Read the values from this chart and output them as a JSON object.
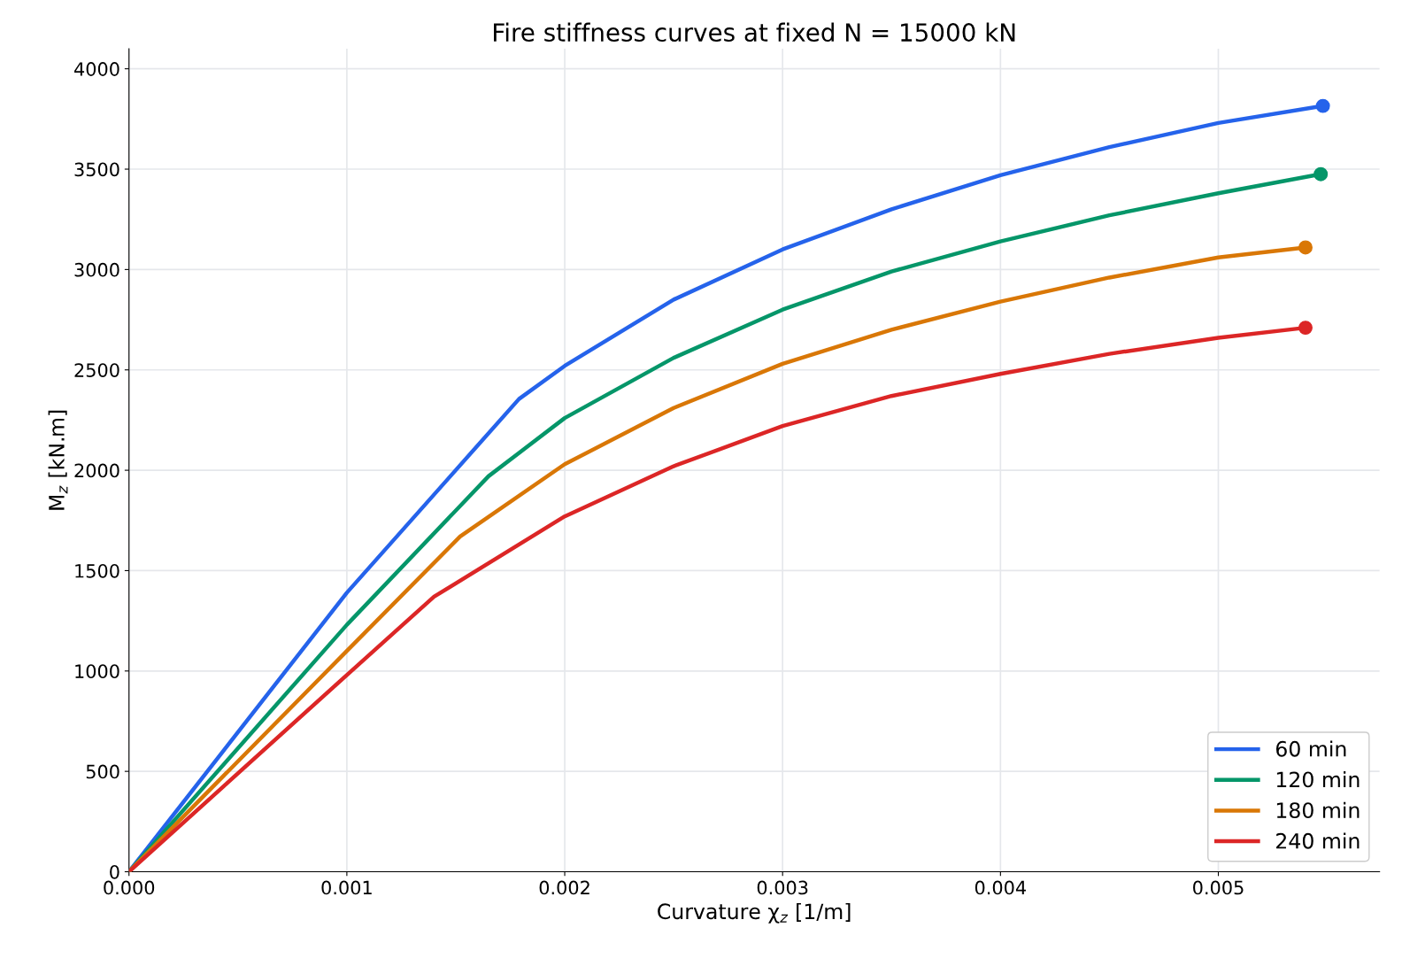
{
  "chart_data": {
    "type": "line",
    "title": "Fire stiffness curves at fixed N = 15000 kN",
    "xlabel": "Curvature χ$_{z}$ [1/m]",
    "ylabel": "M$_{z}$ [kN.m]",
    "xlim": [
      0,
      0.00574
    ],
    "xticks": [
      {
        "value": 0,
        "label": "0.000"
      },
      0.001,
      0.002,
      0.003,
      0.004,
      0.005
    ],
    "ylim": [
      0,
      4100
    ],
    "yticks": [
      0,
      500,
      1000,
      1500,
      2000,
      2500,
      3000,
      3500,
      4000
    ],
    "grid": true,
    "legend": "bottom right",
    "line_style": "solid",
    "series": [
      {
        "name": "60 min",
        "color": "#2563eb",
        "x": [
          0,
          0.001,
          0.00179,
          0.002,
          0.0025,
          0.003,
          0.0035,
          0.004,
          0.0045,
          0.005,
          0.00548
        ],
        "values": [
          0,
          1390,
          2355,
          2520,
          2850,
          3100,
          3300,
          3470,
          3610,
          3730,
          3815
        ]
      },
      {
        "name": "120 min",
        "color": "#059669",
        "x": [
          0,
          0.001,
          0.00165,
          0.002,
          0.0025,
          0.003,
          0.0035,
          0.004,
          0.0045,
          0.005,
          0.00547
        ],
        "values": [
          0,
          1230,
          1970,
          2260,
          2560,
          2800,
          2990,
          3140,
          3270,
          3380,
          3475
        ]
      },
      {
        "name": "180 min",
        "color": "#d97706",
        "x": [
          0,
          0.001,
          0.00152,
          0.002,
          0.0025,
          0.003,
          0.0035,
          0.004,
          0.0045,
          0.005,
          0.0054
        ],
        "values": [
          0,
          1100,
          1670,
          2030,
          2310,
          2530,
          2700,
          2840,
          2960,
          3060,
          3110
        ]
      },
      {
        "name": "240 min",
        "color": "#dc2626",
        "x": [
          0,
          0.001,
          0.0014,
          0.002,
          0.0025,
          0.003,
          0.0035,
          0.004,
          0.0045,
          0.005,
          0.0054
        ],
        "values": [
          0,
          980,
          1370,
          1770,
          2020,
          2220,
          2370,
          2480,
          2580,
          2660,
          2710
        ]
      },
      {
        "type": "scatter",
        "marker": "circle",
        "color": "#2563eb",
        "x": [
          0.00548
        ],
        "values": [
          3815
        ]
      },
      {
        "type": "scatter",
        "marker": "circle",
        "color": "#059669",
        "x": [
          0.00547
        ],
        "values": [
          3475
        ]
      },
      {
        "type": "scatter",
        "marker": "circle",
        "color": "#d97706",
        "x": [
          0.0054
        ],
        "values": [
          3110
        ]
      },
      {
        "type": "scatter",
        "marker": "circle",
        "color": "#dc2626",
        "x": [
          0.0054
        ],
        "values": [
          2710
        ]
      }
    ]
  }
}
